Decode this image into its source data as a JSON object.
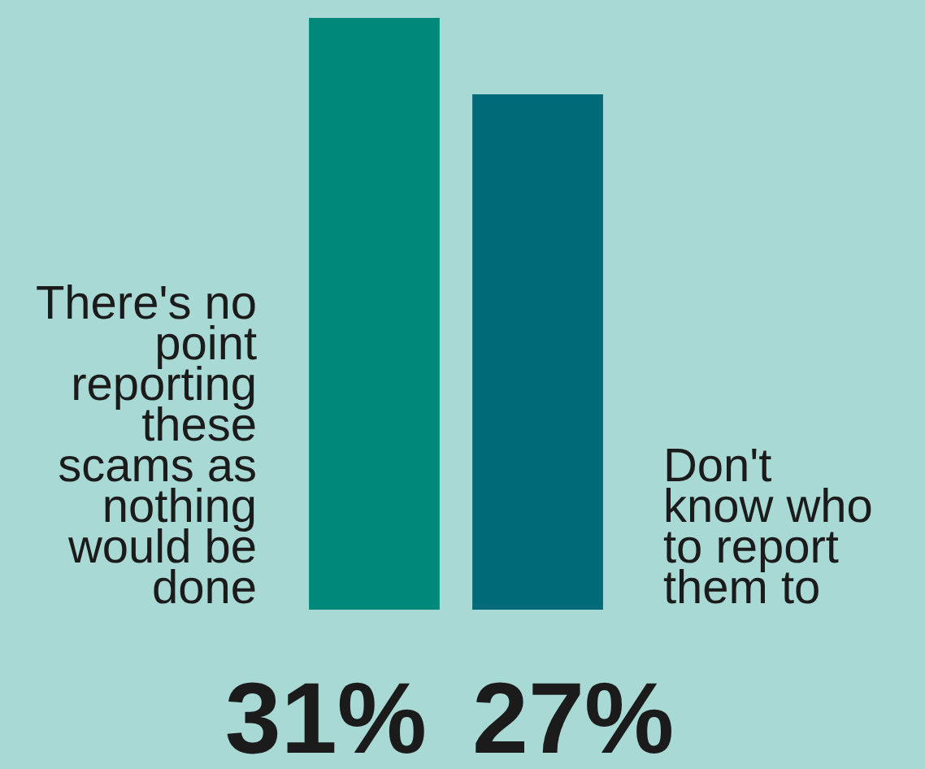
{
  "chart_data": {
    "type": "bar",
    "categories": [
      "There's no point reporting these scams as nothing would be done",
      "Don't know who to report them to"
    ],
    "values": [
      31,
      27
    ],
    "colors": [
      "#00897a",
      "#006a78"
    ],
    "value_labels": [
      "31%",
      "27%"
    ]
  }
}
